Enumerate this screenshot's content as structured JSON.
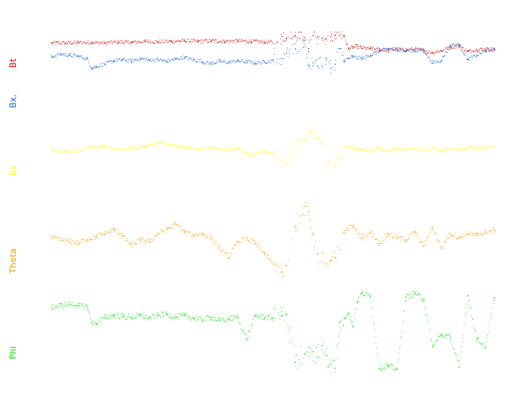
{
  "chart_data": {
    "type": "scatter",
    "title": "",
    "x_range": [
      0,
      1
    ],
    "grid": false,
    "legend": "none",
    "note": "Stacked panels; values read as a normalized 0-1 signal level per panel (1 = top of panel band). No axes or ticks are printed.",
    "panels": [
      {
        "key": "bt",
        "label": "Bt",
        "color": "#cc0000",
        "series": [
          {
            "name": "Bt",
            "x": [
              0.0,
              0.03,
              0.06,
              0.09,
              0.12,
              0.15,
              0.18,
              0.21,
              0.24,
              0.27,
              0.3,
              0.33,
              0.36,
              0.39,
              0.42,
              0.45,
              0.48,
              0.51,
              0.52,
              0.53,
              0.55,
              0.57,
              0.58,
              0.59,
              0.6,
              0.61,
              0.62,
              0.63,
              0.64,
              0.65,
              0.66,
              0.67,
              0.68,
              0.69,
              0.7,
              0.72,
              0.74,
              0.76,
              0.78,
              0.8,
              0.82,
              0.84,
              0.86,
              0.88,
              0.9,
              0.92,
              0.94,
              0.96,
              0.98,
              1.0
            ],
            "y": [
              0.8,
              0.8,
              0.81,
              0.81,
              0.8,
              0.82,
              0.81,
              0.83,
              0.82,
              0.83,
              0.84,
              0.83,
              0.84,
              0.83,
              0.84,
              0.83,
              0.82,
              0.81,
              0.92,
              0.89,
              0.93,
              0.9,
              0.7,
              0.94,
              0.91,
              0.89,
              0.88,
              0.92,
              0.94,
              0.94,
              0.93,
              0.7,
              0.72,
              0.74,
              0.71,
              0.7,
              0.68,
              0.66,
              0.69,
              0.67,
              0.69,
              0.66,
              0.63,
              0.66,
              0.73,
              0.74,
              0.65,
              0.68,
              0.69,
              0.68
            ]
          },
          {
            "name": "Bx",
            "x": [
              0.0,
              0.02,
              0.04,
              0.06,
              0.08,
              0.09,
              0.1,
              0.12,
              0.14,
              0.16,
              0.18,
              0.2,
              0.22,
              0.24,
              0.26,
              0.28,
              0.3,
              0.32,
              0.34,
              0.36,
              0.38,
              0.4,
              0.42,
              0.44,
              0.46,
              0.48,
              0.5,
              0.52,
              0.53,
              0.55,
              0.57,
              0.58,
              0.59,
              0.6,
              0.62,
              0.63,
              0.64,
              0.65,
              0.66,
              0.68,
              0.7,
              0.72,
              0.74,
              0.76,
              0.78,
              0.8,
              0.82,
              0.84,
              0.86,
              0.88,
              0.9,
              0.92,
              0.94,
              0.96,
              0.98,
              1.0
            ],
            "y": [
              0.55,
              0.6,
              0.58,
              0.56,
              0.52,
              0.35,
              0.37,
              0.42,
              0.48,
              0.5,
              0.47,
              0.52,
              0.49,
              0.5,
              0.47,
              0.51,
              0.54,
              0.5,
              0.46,
              0.43,
              0.47,
              0.45,
              0.48,
              0.46,
              0.44,
              0.46,
              0.48,
              0.52,
              0.62,
              0.7,
              0.85,
              0.4,
              0.45,
              0.38,
              0.52,
              0.35,
              0.42,
              0.7,
              0.48,
              0.55,
              0.52,
              0.58,
              0.65,
              0.7,
              0.68,
              0.67,
              0.66,
              0.68,
              0.44,
              0.49,
              0.75,
              0.78,
              0.5,
              0.58,
              0.66,
              0.69
            ]
          }
        ]
      },
      {
        "key": "bz",
        "label": "Bz",
        "color": "#ffff00",
        "series": [
          {
            "name": "Bz",
            "x": [
              0.0,
              0.03,
              0.06,
              0.09,
              0.12,
              0.15,
              0.18,
              0.21,
              0.24,
              0.27,
              0.3,
              0.33,
              0.36,
              0.39,
              0.42,
              0.45,
              0.48,
              0.5,
              0.52,
              0.53,
              0.55,
              0.57,
              0.58,
              0.59,
              0.6,
              0.61,
              0.62,
              0.63,
              0.64,
              0.66,
              0.68,
              0.7,
              0.72,
              0.74,
              0.76,
              0.78,
              0.8,
              0.82,
              0.84,
              0.86,
              0.88,
              0.9,
              0.92,
              0.94,
              0.96,
              0.98,
              1.0
            ],
            "y": [
              0.55,
              0.52,
              0.54,
              0.6,
              0.62,
              0.55,
              0.58,
              0.63,
              0.69,
              0.64,
              0.61,
              0.55,
              0.6,
              0.56,
              0.58,
              0.45,
              0.52,
              0.47,
              0.35,
              0.28,
              0.65,
              0.75,
              0.95,
              0.9,
              0.78,
              0.7,
              0.3,
              0.15,
              0.22,
              0.62,
              0.58,
              0.55,
              0.54,
              0.59,
              0.53,
              0.57,
              0.55,
              0.58,
              0.54,
              0.59,
              0.53,
              0.57,
              0.56,
              0.6,
              0.58,
              0.58,
              0.62
            ]
          }
        ]
      },
      {
        "key": "theta",
        "label": "Theta",
        "color": "#e8a000",
        "series": [
          {
            "name": "Theta",
            "x": [
              0.0,
              0.02,
              0.04,
              0.06,
              0.08,
              0.1,
              0.12,
              0.14,
              0.16,
              0.18,
              0.2,
              0.22,
              0.24,
              0.26,
              0.28,
              0.3,
              0.32,
              0.34,
              0.36,
              0.38,
              0.4,
              0.42,
              0.44,
              0.46,
              0.48,
              0.5,
              0.52,
              0.53,
              0.55,
              0.57,
              0.58,
              0.59,
              0.6,
              0.61,
              0.62,
              0.63,
              0.64,
              0.65,
              0.66,
              0.68,
              0.7,
              0.72,
              0.74,
              0.76,
              0.78,
              0.8,
              0.82,
              0.84,
              0.86,
              0.88,
              0.9,
              0.92,
              0.94,
              0.96,
              0.98,
              1.0
            ],
            "y": [
              0.55,
              0.52,
              0.5,
              0.48,
              0.53,
              0.56,
              0.6,
              0.65,
              0.58,
              0.45,
              0.52,
              0.5,
              0.6,
              0.66,
              0.72,
              0.62,
              0.58,
              0.6,
              0.55,
              0.4,
              0.3,
              0.5,
              0.54,
              0.48,
              0.35,
              0.22,
              0.12,
              0.2,
              0.7,
              0.95,
              0.88,
              0.6,
              0.35,
              0.25,
              0.22,
              0.26,
              0.3,
              0.4,
              0.62,
              0.7,
              0.55,
              0.62,
              0.48,
              0.6,
              0.55,
              0.52,
              0.62,
              0.45,
              0.68,
              0.42,
              0.6,
              0.55,
              0.6,
              0.58,
              0.62,
              0.64
            ]
          }
        ]
      },
      {
        "key": "phi",
        "label": "Phi",
        "color": "#00dd00",
        "series": [
          {
            "name": "Phi",
            "x": [
              0.0,
              0.02,
              0.04,
              0.06,
              0.08,
              0.09,
              0.1,
              0.12,
              0.14,
              0.16,
              0.18,
              0.2,
              0.22,
              0.24,
              0.26,
              0.28,
              0.3,
              0.32,
              0.34,
              0.36,
              0.38,
              0.4,
              0.42,
              0.44,
              0.46,
              0.48,
              0.5,
              0.52,
              0.53,
              0.55,
              0.57,
              0.58,
              0.59,
              0.6,
              0.61,
              0.62,
              0.63,
              0.64,
              0.65,
              0.66,
              0.67,
              0.68,
              0.69,
              0.7,
              0.72,
              0.74,
              0.76,
              0.78,
              0.8,
              0.82,
              0.84,
              0.86,
              0.88,
              0.9,
              0.92,
              0.94,
              0.96,
              0.98,
              1.0
            ],
            "y": [
              0.78,
              0.8,
              0.82,
              0.8,
              0.79,
              0.6,
              0.58,
              0.66,
              0.68,
              0.67,
              0.66,
              0.68,
              0.65,
              0.68,
              0.7,
              0.66,
              0.68,
              0.65,
              0.63,
              0.66,
              0.62,
              0.64,
              0.66,
              0.4,
              0.68,
              0.66,
              0.65,
              0.68,
              0.7,
              0.12,
              0.22,
              0.3,
              0.25,
              0.18,
              0.32,
              0.2,
              0.1,
              0.05,
              0.6,
              0.65,
              0.72,
              0.55,
              0.85,
              0.95,
              0.92,
              0.05,
              0.07,
              0.04,
              0.9,
              0.95,
              0.88,
              0.3,
              0.45,
              0.42,
              0.06,
              0.92,
              0.4,
              0.3,
              0.9
            ]
          }
        ]
      }
    ]
  }
}
